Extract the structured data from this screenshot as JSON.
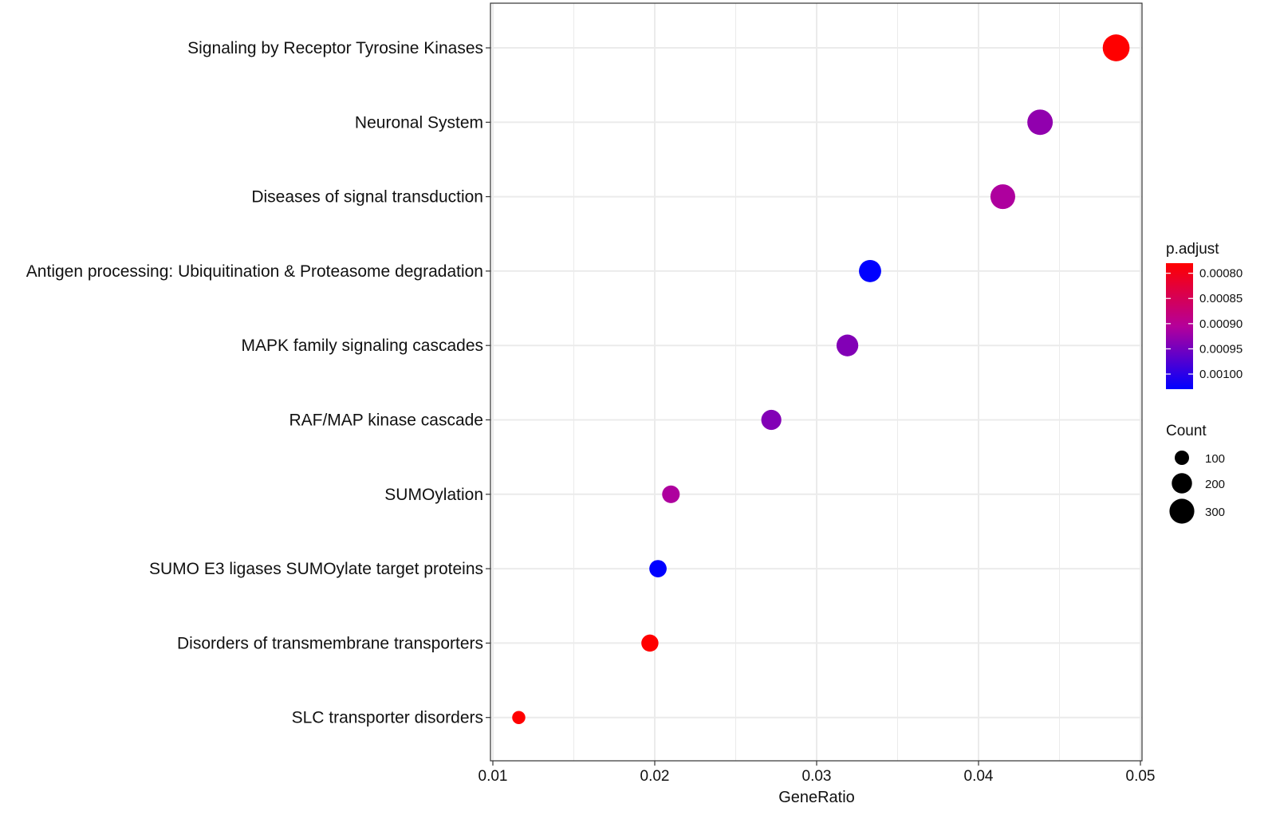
{
  "chart_data": {
    "type": "scatter",
    "subtype": "dotplot",
    "title": "",
    "xlabel": "GeneRatio",
    "ylabel": "",
    "xlim": [
      0.01,
      0.05
    ],
    "x_ticks": [
      0.01,
      0.02,
      0.03,
      0.04,
      0.05
    ],
    "x_tick_labels": [
      "0.01",
      "0.02",
      "0.03",
      "0.04",
      "0.05"
    ],
    "grid": true,
    "categories": [
      "Signaling by Receptor Tyrosine Kinases",
      "Neuronal System",
      "Diseases of signal transduction",
      "Antigen processing: Ubiquitination & Proteasome degradation",
      "MAPK family signaling cascades",
      "RAF/MAP kinase cascade",
      "SUMOylation",
      "SUMO E3 ligases SUMOylate target proteins",
      "Disorders of transmembrane transporters",
      "SLC transporter disorders"
    ],
    "points": [
      {
        "term": "Signaling by Receptor Tyrosine Kinases",
        "gene_ratio": 0.0485,
        "count": 350,
        "p_adjust": 0.00078
      },
      {
        "term": "Neuronal System",
        "gene_ratio": 0.0438,
        "count": 315,
        "p_adjust": 0.00093
      },
      {
        "term": "Diseases of signal transduction",
        "gene_ratio": 0.0415,
        "count": 298,
        "p_adjust": 0.00091
      },
      {
        "term": "Antigen processing: Ubiquitination & Proteasome degradation",
        "gene_ratio": 0.0333,
        "count": 240,
        "p_adjust": 0.00103
      },
      {
        "term": "MAPK family signaling cascades",
        "gene_ratio": 0.0319,
        "count": 230,
        "p_adjust": 0.00094
      },
      {
        "term": "RAF/MAP kinase cascade",
        "gene_ratio": 0.0272,
        "count": 196,
        "p_adjust": 0.00094
      },
      {
        "term": "SUMOylation",
        "gene_ratio": 0.021,
        "count": 151,
        "p_adjust": 0.00091
      },
      {
        "term": "SUMO E3 ligases SUMOylate target proteins",
        "gene_ratio": 0.0202,
        "count": 146,
        "p_adjust": 0.00103
      },
      {
        "term": "Disorders of transmembrane transporters",
        "gene_ratio": 0.0197,
        "count": 142,
        "p_adjust": 0.00078
      },
      {
        "term": "SLC transporter disorders",
        "gene_ratio": 0.0116,
        "count": 84,
        "p_adjust": 0.00078
      }
    ],
    "color_legend": {
      "title": "p.adjust",
      "ticks": [
        0.0008,
        0.00085,
        0.0009,
        0.00095,
        0.001
      ],
      "tick_labels": [
        "0.00080",
        "0.00085",
        "0.00090",
        "0.00095",
        "0.00100"
      ],
      "range": [
        0.00078,
        0.00103
      ],
      "low_color": "#ff0000",
      "high_color": "#0000ff"
    },
    "size_legend": {
      "title": "Count",
      "values": [
        100,
        200,
        300
      ],
      "labels": [
        "100",
        "200",
        "300"
      ]
    },
    "colors": {
      "panel_border": "#333333",
      "grid": "#ebebeb",
      "axis_tick": "#333333",
      "legend_dot": "#000000"
    }
  }
}
